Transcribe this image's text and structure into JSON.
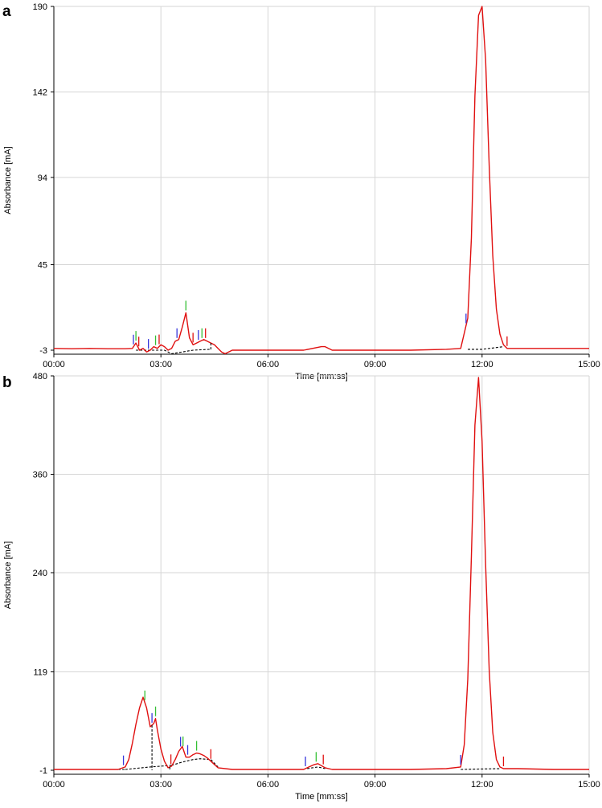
{
  "chart_data": [
    {
      "panel": "a",
      "type": "line",
      "xlabel": "Time [mm:ss]",
      "ylabel": "Absorbance [mA]",
      "xlim": [
        0,
        15
      ],
      "ylim": [
        -3,
        190
      ],
      "xticks": [
        "00:00",
        "03:00",
        "06:00",
        "09:00",
        "12:00",
        "15:00"
      ],
      "yticks": [
        -3,
        45,
        94,
        142,
        190
      ],
      "grid": true,
      "series": [
        {
          "color": "#e01010",
          "x": [
            -0.3,
            0,
            0.5,
            1.0,
            1.5,
            2.0,
            2.2,
            2.3,
            2.4,
            2.5,
            2.6,
            2.7,
            2.8,
            2.9,
            3.0,
            3.1,
            3.2,
            3.3,
            3.4,
            3.5,
            3.6,
            3.7,
            3.8,
            3.9,
            4.0,
            4.1,
            4.2,
            4.3,
            4.4,
            4.5,
            4.6,
            4.7,
            4.8,
            5.0,
            5.5,
            6.0,
            6.5,
            7.0,
            7.5,
            7.6,
            7.8,
            8.0,
            9.0,
            10.0,
            11.0,
            11.4,
            11.6,
            11.7,
            11.8,
            11.9,
            12.0,
            12.1,
            12.2,
            12.3,
            12.4,
            12.5,
            12.6,
            12.7,
            13.0,
            14.0,
            15.0
          ],
          "y": [
            -2,
            -2,
            -2.2,
            -2,
            -2.2,
            -2.2,
            -2,
            1,
            -3,
            -2,
            -4,
            -3,
            -1,
            -2,
            0,
            -1,
            -3,
            -2,
            2,
            3,
            10,
            18,
            4,
            0,
            1,
            2,
            3,
            2,
            1,
            0,
            -2,
            -4,
            -5,
            -3,
            -3,
            -3,
            -3,
            -3,
            -1,
            -1,
            -3,
            -3,
            -3,
            -3,
            -2.5,
            -2,
            15,
            60,
            140,
            185,
            190,
            160,
            100,
            50,
            20,
            6,
            0,
            -2,
            -2,
            -2,
            -2
          ]
        }
      ],
      "baselines": [
        {
          "x": [
            2.3,
            3.1,
            3.3,
            3.9,
            4.4
          ],
          "y": [
            -3,
            -3,
            -5,
            -3,
            -2.5
          ]
        },
        {
          "x": [
            11.6,
            12.0,
            12.6
          ],
          "y": [
            -2.5,
            -2.5,
            -1
          ]
        }
      ],
      "drop_lines": [
        4.4
      ],
      "markers": [
        {
          "x": 2.23,
          "color": "#3535dc"
        },
        {
          "x": 2.3,
          "color": "#35c035"
        },
        {
          "x": 2.38,
          "color": "#e01010"
        },
        {
          "x": 2.65,
          "color": "#3535dc"
        },
        {
          "x": 2.85,
          "color": "#35c035"
        },
        {
          "x": 2.95,
          "color": "#e01010"
        },
        {
          "x": 3.45,
          "color": "#3535dc"
        },
        {
          "x": 3.7,
          "color": "#35c035"
        },
        {
          "x": 3.9,
          "color": "#e01010"
        },
        {
          "x": 4.05,
          "color": "#3535dc"
        },
        {
          "x": 4.15,
          "color": "#35c035"
        },
        {
          "x": 4.25,
          "color": "#e01010"
        },
        {
          "x": 11.55,
          "color": "#3535dc"
        },
        {
          "x": 12.7,
          "color": "#e01010"
        }
      ]
    },
    {
      "panel": "b",
      "type": "line",
      "xlabel": "Time [mm:ss]",
      "ylabel": "Absorbance [mA]",
      "xlim": [
        0,
        15
      ],
      "ylim": [
        -1,
        480
      ],
      "xticks": [
        "00:00",
        "03:00",
        "06:00",
        "09:00",
        "12:00",
        "15:00"
      ],
      "yticks": [
        -1,
        119,
        240,
        360,
        480
      ],
      "grid": true,
      "series": [
        {
          "color": "#e01010",
          "x": [
            -0.3,
            0,
            0.5,
            1.0,
            1.5,
            1.8,
            2.0,
            2.1,
            2.2,
            2.3,
            2.4,
            2.5,
            2.6,
            2.7,
            2.8,
            2.85,
            2.9,
            3.0,
            3.1,
            3.2,
            3.3,
            3.4,
            3.5,
            3.6,
            3.7,
            3.8,
            3.9,
            4.0,
            4.1,
            4.2,
            4.3,
            4.4,
            4.5,
            4.6,
            5.0,
            6.0,
            7.0,
            7.1,
            7.3,
            7.4,
            7.6,
            7.8,
            8.0,
            9.0,
            10.0,
            11.0,
            11.4,
            11.5,
            11.6,
            11.7,
            11.8,
            11.9,
            12.0,
            12.1,
            12.2,
            12.3,
            12.4,
            12.5,
            12.6,
            13.0,
            14.0,
            15.0
          ],
          "y": [
            0,
            0,
            0,
            0,
            0,
            0,
            3,
            12,
            32,
            55,
            75,
            88,
            75,
            52,
            56,
            62,
            48,
            25,
            10,
            2,
            4,
            12,
            22,
            28,
            15,
            15,
            18,
            20,
            19,
            17,
            14,
            10,
            6,
            2,
            0,
            0,
            0,
            2,
            6,
            7,
            2,
            0,
            0,
            0,
            0,
            1,
            3,
            30,
            110,
            260,
            420,
            478,
            400,
            250,
            120,
            45,
            12,
            3,
            1,
            1,
            0,
            0
          ]
        }
      ],
      "baselines": [
        {
          "x": [
            0.0,
            2.0
          ],
          "y": [
            0,
            0
          ]
        },
        {
          "x": [
            2.0,
            2.7,
            3.0,
            3.3
          ],
          "y": [
            0,
            3,
            4,
            5
          ]
        },
        {
          "x": [
            3.3,
            3.6,
            3.9,
            4.1,
            4.4,
            4.6
          ],
          "y": [
            5,
            9,
            12,
            13,
            12,
            3
          ]
        },
        {
          "x": [
            7.1,
            7.4,
            7.6
          ],
          "y": [
            1,
            3,
            1
          ]
        },
        {
          "x": [
            11.4,
            11.9,
            12.5
          ],
          "y": [
            0,
            0.5,
            1
          ]
        }
      ],
      "drop_lines": [
        2.75,
        3.25
      ],
      "markers": [
        {
          "x": 1.95,
          "color": "#3535dc"
        },
        {
          "x": 2.55,
          "color": "#35c035"
        },
        {
          "x": 2.75,
          "color": "#3535dc"
        },
        {
          "x": 2.85,
          "color": "#35c035"
        },
        {
          "x": 3.28,
          "color": "#e01010"
        },
        {
          "x": 3.55,
          "color": "#3535dc"
        },
        {
          "x": 3.62,
          "color": "#35c035"
        },
        {
          "x": 3.75,
          "color": "#3535dc"
        },
        {
          "x": 4.0,
          "color": "#35c035"
        },
        {
          "x": 4.4,
          "color": "#e01010"
        },
        {
          "x": 7.05,
          "color": "#3535dc"
        },
        {
          "x": 7.35,
          "color": "#35c035"
        },
        {
          "x": 7.55,
          "color": "#e01010"
        },
        {
          "x": 11.4,
          "color": "#3535dc"
        },
        {
          "x": 12.6,
          "color": "#e01010"
        }
      ]
    }
  ],
  "panel_labels": [
    "a",
    "b"
  ]
}
